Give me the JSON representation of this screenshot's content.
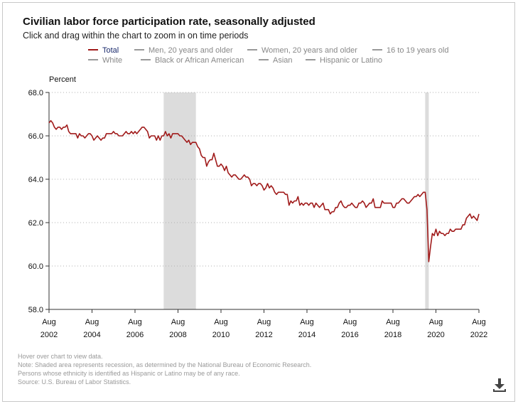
{
  "chart_data": {
    "type": "line",
    "title": "Civilian labor force participation rate, seasonally adjusted",
    "subtitle": "Click and drag within the chart to zoom in on time periods",
    "ylabel": "Percent",
    "ylim": [
      58.0,
      68.0
    ],
    "y_ticks": [
      "58.0",
      "60.0",
      "62.0",
      "64.0",
      "66.0",
      "68.0"
    ],
    "x_ticks": [
      {
        "month": "Aug",
        "year": "2002"
      },
      {
        "month": "Aug",
        "year": "2004"
      },
      {
        "month": "Aug",
        "year": "2006"
      },
      {
        "month": "Aug",
        "year": "2008"
      },
      {
        "month": "Aug",
        "year": "2010"
      },
      {
        "month": "Aug",
        "year": "2012"
      },
      {
        "month": "Aug",
        "year": "2014"
      },
      {
        "month": "Aug",
        "year": "2016"
      },
      {
        "month": "Aug",
        "year": "2018"
      },
      {
        "month": "Aug",
        "year": "2020"
      },
      {
        "month": "Aug",
        "year": "2022"
      }
    ],
    "grid": "horizontal-dotted",
    "legend_position": "top",
    "legend": [
      {
        "label": "Total",
        "active": true
      },
      {
        "label": "Men, 20 years and older",
        "active": false
      },
      {
        "label": "Women, 20 years and older",
        "active": false
      },
      {
        "label": "16 to 19 years old",
        "active": false
      },
      {
        "label": "White",
        "active": false
      },
      {
        "label": "Black or African American",
        "active": false
      },
      {
        "label": "Asian",
        "active": false
      },
      {
        "label": "Hispanic or Latino",
        "active": false
      }
    ],
    "recessions": [
      {
        "start": "2007-12",
        "end": "2009-06"
      },
      {
        "start": "2020-02",
        "end": "2020-04"
      }
    ],
    "series": [
      {
        "name": "Total",
        "color": "#a01a1a",
        "points": [
          [
            "2002-08",
            66.6
          ],
          [
            "2002-09",
            66.7
          ],
          [
            "2002-10",
            66.6
          ],
          [
            "2002-11",
            66.4
          ],
          [
            "2002-12",
            66.3
          ],
          [
            "2003-01",
            66.4
          ],
          [
            "2003-02",
            66.4
          ],
          [
            "2003-03",
            66.3
          ],
          [
            "2003-04",
            66.4
          ],
          [
            "2003-05",
            66.4
          ],
          [
            "2003-06",
            66.5
          ],
          [
            "2003-07",
            66.2
          ],
          [
            "2003-08",
            66.1
          ],
          [
            "2003-09",
            66.1
          ],
          [
            "2003-10",
            66.1
          ],
          [
            "2003-11",
            66.1
          ],
          [
            "2003-12",
            65.9
          ],
          [
            "2004-01",
            66.1
          ],
          [
            "2004-02",
            66.0
          ],
          [
            "2004-03",
            66.0
          ],
          [
            "2004-04",
            65.9
          ],
          [
            "2004-05",
            66.0
          ],
          [
            "2004-06",
            66.1
          ],
          [
            "2004-07",
            66.1
          ],
          [
            "2004-08",
            66.0
          ],
          [
            "2004-09",
            65.8
          ],
          [
            "2004-10",
            65.9
          ],
          [
            "2004-11",
            66.0
          ],
          [
            "2004-12",
            65.9
          ],
          [
            "2005-01",
            65.8
          ],
          [
            "2005-02",
            65.9
          ],
          [
            "2005-03",
            65.9
          ],
          [
            "2005-04",
            66.1
          ],
          [
            "2005-05",
            66.1
          ],
          [
            "2005-06",
            66.1
          ],
          [
            "2005-07",
            66.1
          ],
          [
            "2005-08",
            66.2
          ],
          [
            "2005-09",
            66.1
          ],
          [
            "2005-10",
            66.1
          ],
          [
            "2005-11",
            66.0
          ],
          [
            "2005-12",
            66.0
          ],
          [
            "2006-01",
            66.0
          ],
          [
            "2006-02",
            66.1
          ],
          [
            "2006-03",
            66.2
          ],
          [
            "2006-04",
            66.1
          ],
          [
            "2006-05",
            66.1
          ],
          [
            "2006-06",
            66.2
          ],
          [
            "2006-07",
            66.1
          ],
          [
            "2006-08",
            66.2
          ],
          [
            "2006-09",
            66.1
          ],
          [
            "2006-10",
            66.2
          ],
          [
            "2006-11",
            66.3
          ],
          [
            "2006-12",
            66.4
          ],
          [
            "2007-01",
            66.4
          ],
          [
            "2007-02",
            66.3
          ],
          [
            "2007-03",
            66.2
          ],
          [
            "2007-04",
            65.9
          ],
          [
            "2007-05",
            66.0
          ],
          [
            "2007-06",
            66.0
          ],
          [
            "2007-07",
            66.0
          ],
          [
            "2007-08",
            65.8
          ],
          [
            "2007-09",
            66.0
          ],
          [
            "2007-10",
            65.8
          ],
          [
            "2007-11",
            66.0
          ],
          [
            "2007-12",
            66.0
          ],
          [
            "2008-01",
            66.2
          ],
          [
            "2008-02",
            66.0
          ],
          [
            "2008-03",
            66.1
          ],
          [
            "2008-04",
            65.9
          ],
          [
            "2008-05",
            66.1
          ],
          [
            "2008-06",
            66.1
          ],
          [
            "2008-07",
            66.1
          ],
          [
            "2008-08",
            66.1
          ],
          [
            "2008-09",
            66.0
          ],
          [
            "2008-10",
            66.0
          ],
          [
            "2008-11",
            65.9
          ],
          [
            "2008-12",
            65.8
          ],
          [
            "2009-01",
            65.7
          ],
          [
            "2009-02",
            65.8
          ],
          [
            "2009-03",
            65.6
          ],
          [
            "2009-04",
            65.7
          ],
          [
            "2009-05",
            65.7
          ],
          [
            "2009-06",
            65.7
          ],
          [
            "2009-07",
            65.5
          ],
          [
            "2009-08",
            65.4
          ],
          [
            "2009-09",
            65.1
          ],
          [
            "2009-10",
            65.0
          ],
          [
            "2009-11",
            65.0
          ],
          [
            "2009-12",
            64.6
          ],
          [
            "2010-01",
            64.8
          ],
          [
            "2010-02",
            64.9
          ],
          [
            "2010-03",
            64.9
          ],
          [
            "2010-04",
            65.2
          ],
          [
            "2010-05",
            64.9
          ],
          [
            "2010-06",
            64.6
          ],
          [
            "2010-07",
            64.6
          ],
          [
            "2010-08",
            64.7
          ],
          [
            "2010-09",
            64.6
          ],
          [
            "2010-10",
            64.4
          ],
          [
            "2010-11",
            64.6
          ],
          [
            "2010-12",
            64.3
          ],
          [
            "2011-01",
            64.2
          ],
          [
            "2011-02",
            64.1
          ],
          [
            "2011-03",
            64.2
          ],
          [
            "2011-04",
            64.2
          ],
          [
            "2011-05",
            64.1
          ],
          [
            "2011-06",
            64.0
          ],
          [
            "2011-07",
            64.0
          ],
          [
            "2011-08",
            64.1
          ],
          [
            "2011-09",
            64.2
          ],
          [
            "2011-10",
            64.1
          ],
          [
            "2011-11",
            64.1
          ],
          [
            "2011-12",
            64.0
          ],
          [
            "2012-01",
            63.7
          ],
          [
            "2012-02",
            63.8
          ],
          [
            "2012-03",
            63.8
          ],
          [
            "2012-04",
            63.7
          ],
          [
            "2012-05",
            63.8
          ],
          [
            "2012-06",
            63.8
          ],
          [
            "2012-07",
            63.7
          ],
          [
            "2012-08",
            63.5
          ],
          [
            "2012-09",
            63.6
          ],
          [
            "2012-10",
            63.8
          ],
          [
            "2012-11",
            63.6
          ],
          [
            "2012-12",
            63.7
          ],
          [
            "2013-01",
            63.6
          ],
          [
            "2013-02",
            63.4
          ],
          [
            "2013-03",
            63.3
          ],
          [
            "2013-04",
            63.4
          ],
          [
            "2013-05",
            63.4
          ],
          [
            "2013-06",
            63.4
          ],
          [
            "2013-07",
            63.4
          ],
          [
            "2013-08",
            63.3
          ],
          [
            "2013-09",
            63.3
          ],
          [
            "2013-10",
            62.8
          ],
          [
            "2013-11",
            63.0
          ],
          [
            "2013-12",
            62.9
          ],
          [
            "2014-01",
            63.0
          ],
          [
            "2014-02",
            63.0
          ],
          [
            "2014-03",
            63.2
          ],
          [
            "2014-04",
            62.8
          ],
          [
            "2014-05",
            62.9
          ],
          [
            "2014-06",
            62.8
          ],
          [
            "2014-07",
            62.9
          ],
          [
            "2014-08",
            62.9
          ],
          [
            "2014-09",
            62.8
          ],
          [
            "2014-10",
            62.9
          ],
          [
            "2014-11",
            62.9
          ],
          [
            "2014-12",
            62.7
          ],
          [
            "2015-01",
            62.9
          ],
          [
            "2015-02",
            62.8
          ],
          [
            "2015-03",
            62.7
          ],
          [
            "2015-04",
            62.8
          ],
          [
            "2015-05",
            62.9
          ],
          [
            "2015-06",
            62.6
          ],
          [
            "2015-07",
            62.6
          ],
          [
            "2015-08",
            62.6
          ],
          [
            "2015-09",
            62.4
          ],
          [
            "2015-10",
            62.5
          ],
          [
            "2015-11",
            62.5
          ],
          [
            "2015-12",
            62.7
          ],
          [
            "2016-01",
            62.7
          ],
          [
            "2016-02",
            62.9
          ],
          [
            "2016-03",
            63.0
          ],
          [
            "2016-04",
            62.8
          ],
          [
            "2016-05",
            62.7
          ],
          [
            "2016-06",
            62.7
          ],
          [
            "2016-07",
            62.8
          ],
          [
            "2016-08",
            62.8
          ],
          [
            "2016-09",
            62.9
          ],
          [
            "2016-10",
            62.8
          ],
          [
            "2016-11",
            62.7
          ],
          [
            "2016-12",
            62.7
          ],
          [
            "2017-01",
            62.9
          ],
          [
            "2017-02",
            62.9
          ],
          [
            "2017-03",
            63.0
          ],
          [
            "2017-04",
            62.9
          ],
          [
            "2017-05",
            62.7
          ],
          [
            "2017-06",
            62.8
          ],
          [
            "2017-07",
            62.9
          ],
          [
            "2017-08",
            62.9
          ],
          [
            "2017-09",
            63.1
          ],
          [
            "2017-10",
            62.7
          ],
          [
            "2017-11",
            62.7
          ],
          [
            "2017-12",
            62.7
          ],
          [
            "2018-01",
            62.7
          ],
          [
            "2018-02",
            63.0
          ],
          [
            "2018-03",
            62.9
          ],
          [
            "2018-04",
            62.9
          ],
          [
            "2018-05",
            62.9
          ],
          [
            "2018-06",
            62.9
          ],
          [
            "2018-07",
            62.9
          ],
          [
            "2018-08",
            62.7
          ],
          [
            "2018-09",
            62.7
          ],
          [
            "2018-10",
            62.9
          ],
          [
            "2018-11",
            62.9
          ],
          [
            "2018-12",
            63.0
          ],
          [
            "2019-01",
            63.1
          ],
          [
            "2019-02",
            63.1
          ],
          [
            "2019-03",
            63.0
          ],
          [
            "2019-04",
            62.9
          ],
          [
            "2019-05",
            62.9
          ],
          [
            "2019-06",
            63.0
          ],
          [
            "2019-07",
            63.1
          ],
          [
            "2019-08",
            63.2
          ],
          [
            "2019-09",
            63.2
          ],
          [
            "2019-10",
            63.3
          ],
          [
            "2019-11",
            63.2
          ],
          [
            "2019-12",
            63.3
          ],
          [
            "2020-01",
            63.4
          ],
          [
            "2020-02",
            63.4
          ],
          [
            "2020-03",
            62.6
          ],
          [
            "2020-04",
            60.2
          ],
          [
            "2020-05",
            60.9
          ],
          [
            "2020-06",
            61.5
          ],
          [
            "2020-07",
            61.4
          ],
          [
            "2020-08",
            61.7
          ],
          [
            "2020-09",
            61.4
          ],
          [
            "2020-10",
            61.6
          ],
          [
            "2020-11",
            61.5
          ],
          [
            "2020-12",
            61.5
          ],
          [
            "2021-01",
            61.4
          ],
          [
            "2021-02",
            61.5
          ],
          [
            "2021-03",
            61.5
          ],
          [
            "2021-04",
            61.7
          ],
          [
            "2021-05",
            61.6
          ],
          [
            "2021-06",
            61.6
          ],
          [
            "2021-07",
            61.7
          ],
          [
            "2021-08",
            61.7
          ],
          [
            "2021-09",
            61.7
          ],
          [
            "2021-10",
            61.7
          ],
          [
            "2021-11",
            61.9
          ],
          [
            "2021-12",
            61.9
          ],
          [
            "2022-01",
            62.2
          ],
          [
            "2022-02",
            62.3
          ],
          [
            "2022-03",
            62.4
          ],
          [
            "2022-04",
            62.2
          ],
          [
            "2022-05",
            62.3
          ],
          [
            "2022-06",
            62.2
          ],
          [
            "2022-07",
            62.1
          ],
          [
            "2022-08",
            62.4
          ]
        ]
      }
    ]
  },
  "notes": [
    "Hover over chart to view data.",
    "Note: Shaded area represents recession, as determined by the National Bureau of Economic Research.",
    "Persons whose ethnicity is identified as Hispanic or Latino may be of any race.",
    "Source: U.S. Bureau of Labor Statistics."
  ],
  "download_icon": "download-icon"
}
